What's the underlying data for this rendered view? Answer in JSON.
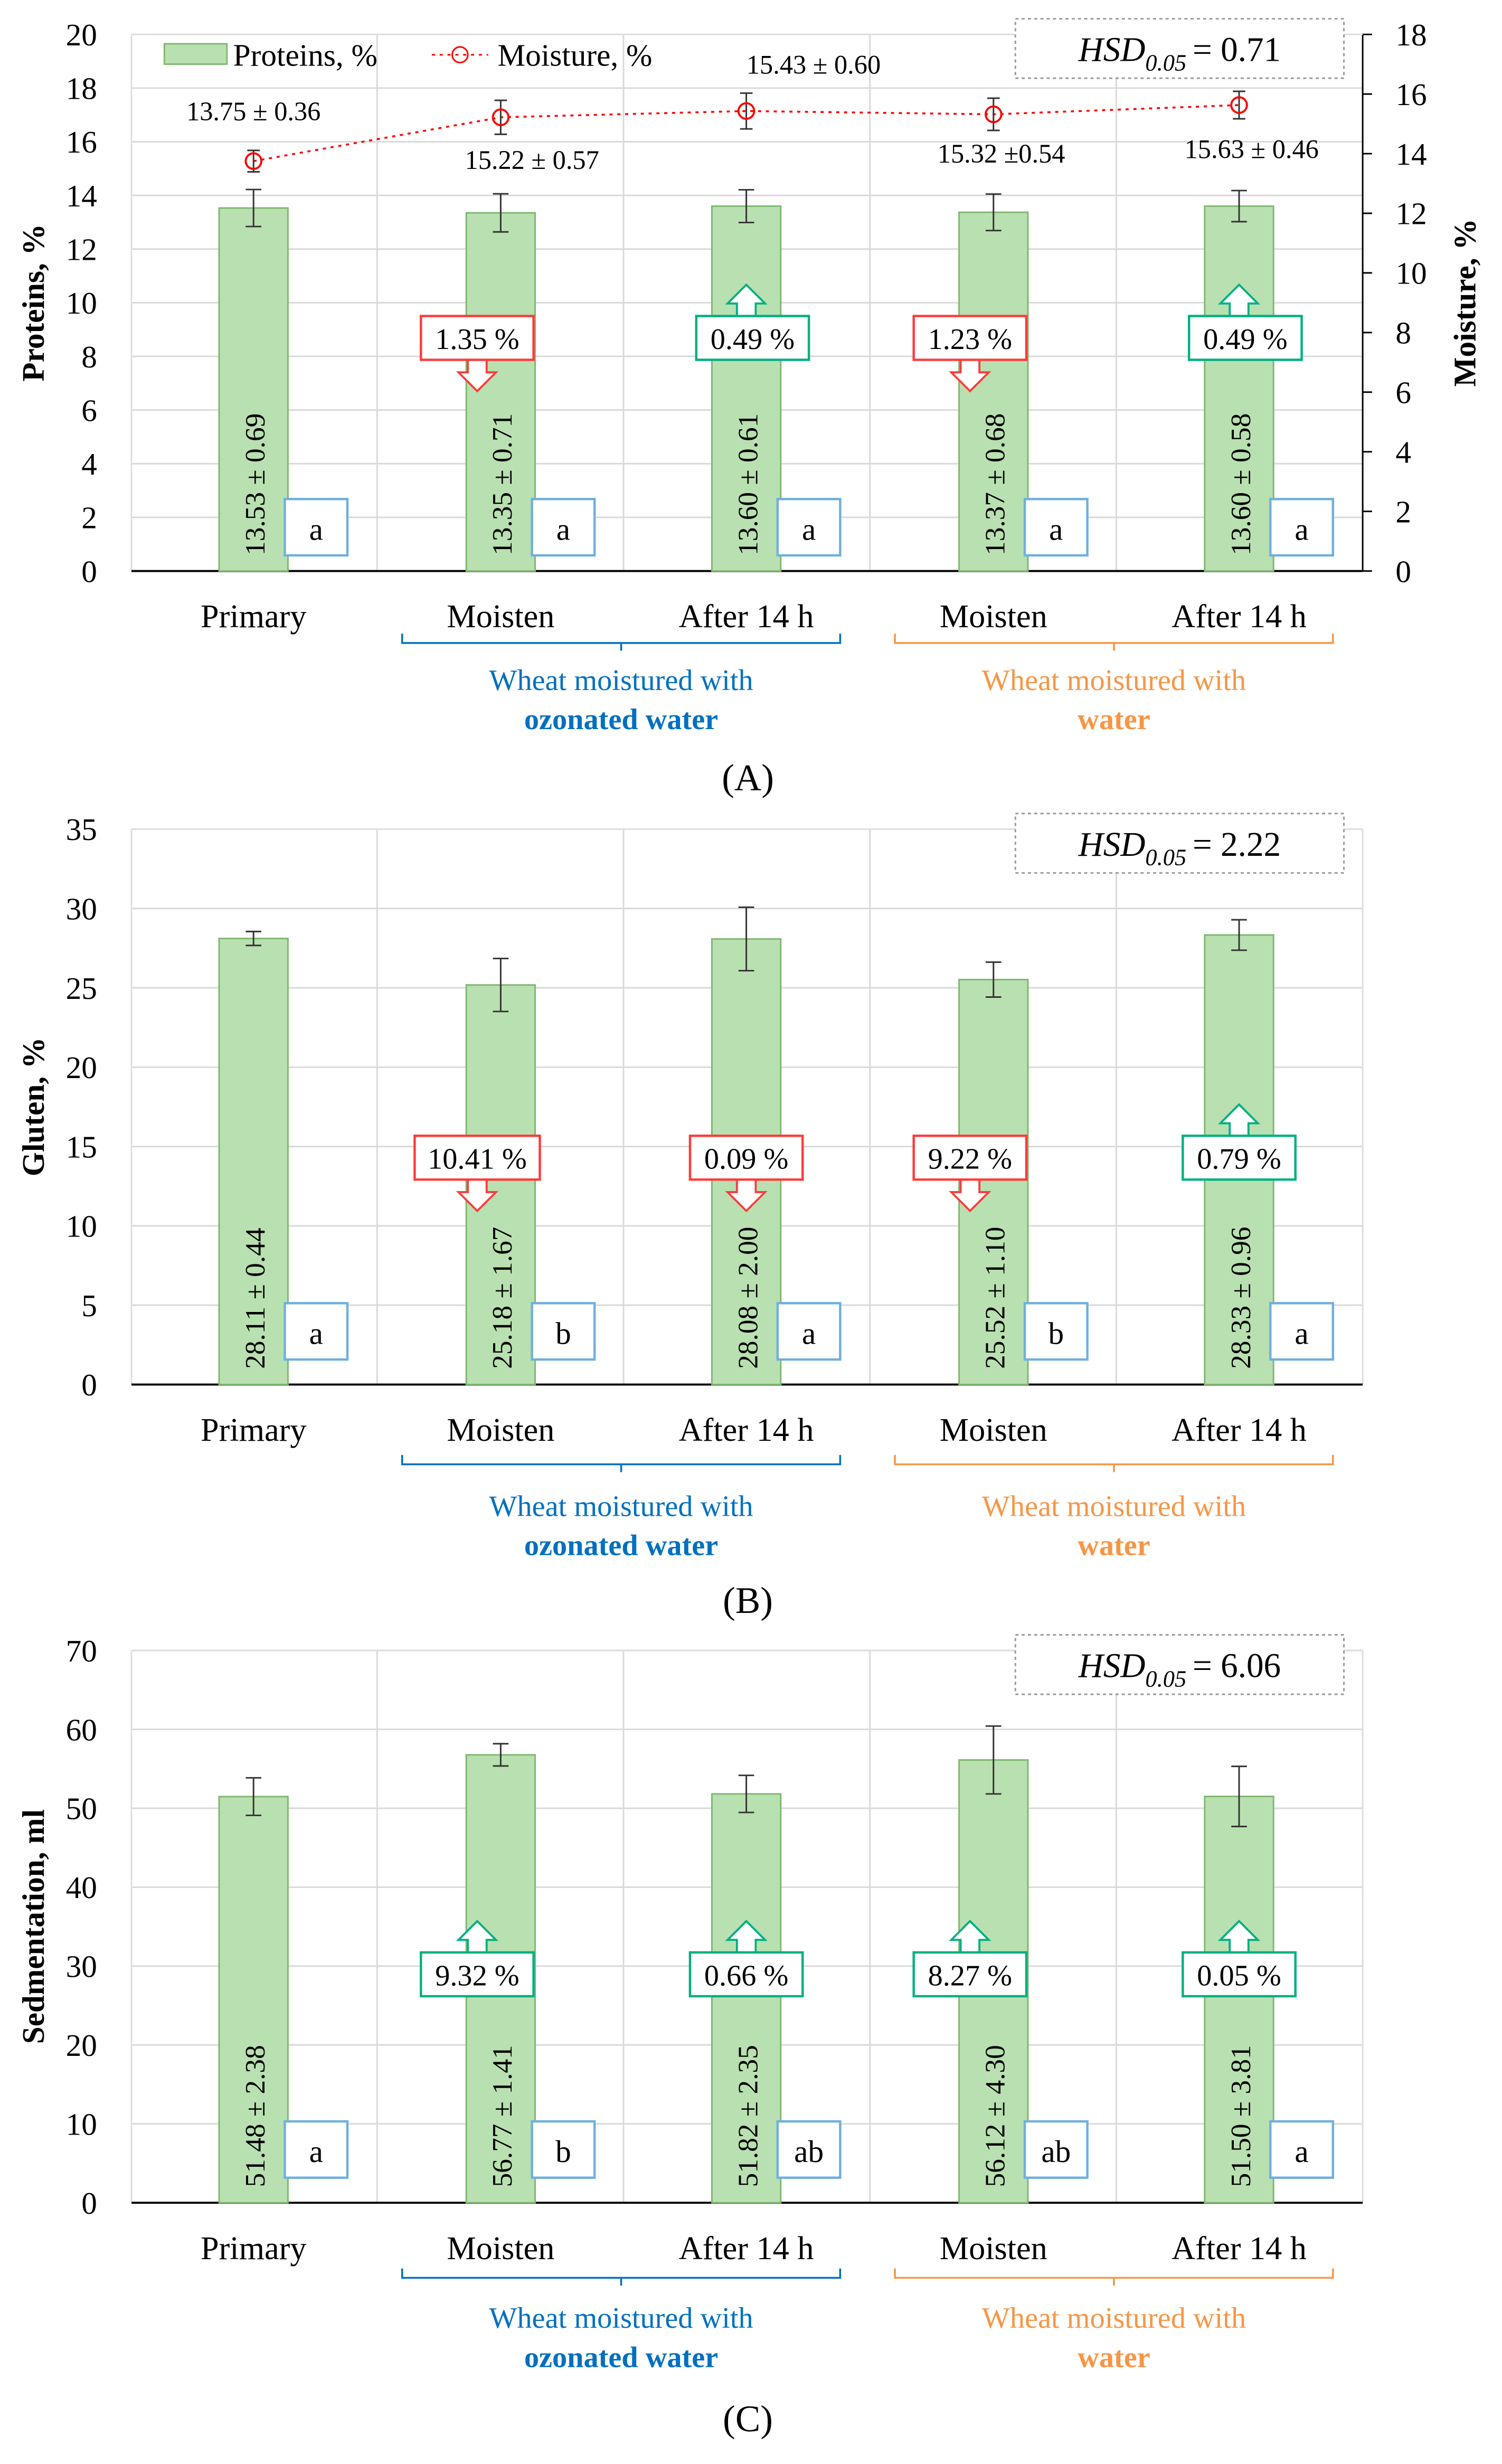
{
  "chart_data": [
    {
      "type": "bar",
      "panel_label": "(A)",
      "categories": [
        "Primary",
        "Moisten",
        "After 14 h",
        "Moisten",
        "After 14 h"
      ],
      "groups": [
        {
          "line1": "Wheat moistured with",
          "line2": "ozonated water",
          "color": "#0070C0",
          "members": [
            1,
            2
          ]
        },
        {
          "line1": "Wheat moistured with",
          "line2": "water",
          "color": "#F79646",
          "members": [
            3,
            4
          ]
        }
      ],
      "ylabel": "Proteins, %",
      "y2label": "Moisture, %",
      "ylim": [
        0,
        20
      ],
      "ystep": 2,
      "y2lim": [
        0,
        18
      ],
      "y2step": 2,
      "hsd": {
        "label": "HSD",
        "sub": "0.05",
        "value": "= 0.71"
      },
      "legend": {
        "bar": "Proteins, %",
        "line": "Moisture, %",
        "placement": "top-left"
      },
      "series": [
        {
          "name": "Proteins, %",
          "type": "bar",
          "values": [
            13.53,
            13.35,
            13.6,
            13.37,
            13.6
          ],
          "errors": [
            0.69,
            0.71,
            0.61,
            0.68,
            0.58
          ],
          "value_labels": [
            "13.53 ± 0.69",
            "13.35 ± 0.71",
            "13.60 ± 0.61",
            "13.37 ± 0.68",
            "13.60 ± 0.58"
          ],
          "letters": [
            "a",
            "a",
            "a",
            "a",
            "a"
          ]
        },
        {
          "name": "Moisture, %",
          "type": "line",
          "axis": "right",
          "values": [
            13.75,
            15.22,
            15.43,
            15.32,
            15.63
          ],
          "errors": [
            0.36,
            0.57,
            0.6,
            0.54,
            0.46
          ],
          "value_labels": [
            "13.75 ± 0.36",
            "15.22 ± 0.57",
            "15.43 ± 0.60",
            "15.32 ±0.54",
            "15.63 ± 0.46"
          ]
        }
      ],
      "changes": [
        null,
        {
          "text": "1.35 %",
          "dir": "down"
        },
        {
          "text": "0.49 %",
          "dir": "up"
        },
        {
          "text": "1.23 %",
          "dir": "down"
        },
        {
          "text": "0.49 %",
          "dir": "up"
        }
      ]
    },
    {
      "type": "bar",
      "panel_label": "(B)",
      "categories": [
        "Primary",
        "Moisten",
        "After 14 h",
        "Moisten",
        "After 14 h"
      ],
      "groups": [
        {
          "line1": "Wheat moistured with",
          "line2": "ozonated water",
          "color": "#0070C0",
          "members": [
            1,
            2
          ]
        },
        {
          "line1": "Wheat moistured with",
          "line2": "water",
          "color": "#F79646",
          "members": [
            3,
            4
          ]
        }
      ],
      "ylabel": "Gluten, %",
      "ylim": [
        0,
        35
      ],
      "ystep": 5,
      "hsd": {
        "label": "HSD",
        "sub": "0.05",
        "value": "= 2.22"
      },
      "series": [
        {
          "name": "Gluten, %",
          "type": "bar",
          "values": [
            28.11,
            25.18,
            28.08,
            25.52,
            28.33
          ],
          "errors": [
            0.44,
            1.67,
            2.0,
            1.1,
            0.96
          ],
          "value_labels": [
            "28.11 ± 0.44",
            "25.18 ± 1.67",
            "28.08 ± 2.00",
            "25.52 ± 1.10",
            "28.33 ± 0.96"
          ],
          "letters": [
            "a",
            "b",
            "a",
            "b",
            "a"
          ]
        }
      ],
      "changes": [
        null,
        {
          "text": "10.41 %",
          "dir": "down"
        },
        {
          "text": "0.09 %",
          "dir": "down"
        },
        {
          "text": "9.22 %",
          "dir": "down"
        },
        {
          "text": "0.79 %",
          "dir": "up"
        }
      ]
    },
    {
      "type": "bar",
      "panel_label": "(C)",
      "categories": [
        "Primary",
        "Moisten",
        "After 14 h",
        "Moisten",
        "After 14 h"
      ],
      "groups": [
        {
          "line1": "Wheat moistured with",
          "line2": "ozonated water",
          "color": "#0070C0",
          "members": [
            1,
            2
          ]
        },
        {
          "line1": "Wheat moistured with",
          "line2": "water",
          "color": "#F79646",
          "members": [
            3,
            4
          ]
        }
      ],
      "ylabel": "Sedmentation, ml",
      "ylim": [
        0,
        70
      ],
      "ystep": 10,
      "hsd": {
        "label": "HSD",
        "sub": "0.05",
        "value": "= 6.06"
      },
      "series": [
        {
          "name": "Sedmentation, ml",
          "type": "bar",
          "values": [
            51.48,
            56.77,
            51.82,
            56.12,
            51.5
          ],
          "errors": [
            2.38,
            1.41,
            2.35,
            4.3,
            3.81
          ],
          "value_labels": [
            "51.48 ± 2.38",
            "56.77 ± 1.41",
            "51.82 ± 2.35",
            "56.12 ± 4.30",
            "51.50 ± 3.81"
          ],
          "letters": [
            "a",
            "b",
            "ab",
            "ab",
            "a"
          ]
        }
      ],
      "changes": [
        null,
        {
          "text": "9.32 %",
          "dir": "up"
        },
        {
          "text": "0.66 %",
          "dir": "up"
        },
        {
          "text": "8.27 %",
          "dir": "up"
        },
        {
          "text": "0.05 %",
          "dir": "up"
        }
      ]
    }
  ],
  "colors": {
    "bar_fill": "#B9E0B0",
    "bar_stroke": "#7FB870",
    "moisture": "#FF0000",
    "up": "#00B080",
    "down": "#FF3B3B",
    "letter_border": "#6FB0E0",
    "grid": "#D9D9D9"
  }
}
